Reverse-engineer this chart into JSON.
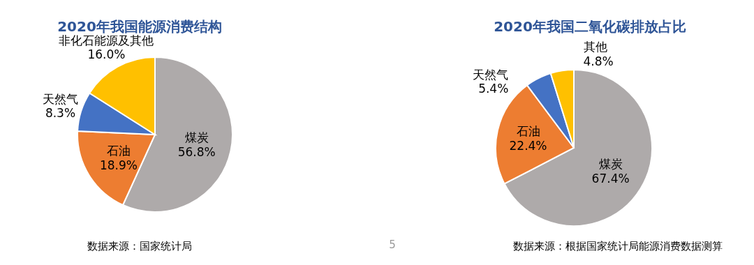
{
  "chart_data": [
    {
      "type": "pie",
      "title": "2020年我国能源消费结构",
      "categories": [
        "煤炭",
        "石油",
        "天然气",
        "非化石能源及其他"
      ],
      "values": [
        56.8,
        18.9,
        8.3,
        16.0
      ],
      "colors": [
        "#aeaaaa",
        "#ed7d31",
        "#4472c4",
        "#ffc000"
      ],
      "value_labels": [
        "56.8%",
        "18.9%",
        "8.3%",
        "16.0%"
      ],
      "annotations": [
        "数据来源：国家统计局",
        "5"
      ]
    },
    {
      "type": "pie",
      "title": "2020年我国二氧化碳排放占比",
      "categories": [
        "煤炭",
        "石油",
        "天然气",
        "其他"
      ],
      "values": [
        67.4,
        22.4,
        5.4,
        4.8
      ],
      "colors": [
        "#aeaaaa",
        "#ed7d31",
        "#4472c4",
        "#ffc000"
      ],
      "value_labels": [
        "67.4%",
        "22.4%",
        "5.4%",
        "4.8%"
      ],
      "annotations": [
        "数据来源：根据国家统计局能源消费数据测算"
      ]
    }
  ]
}
